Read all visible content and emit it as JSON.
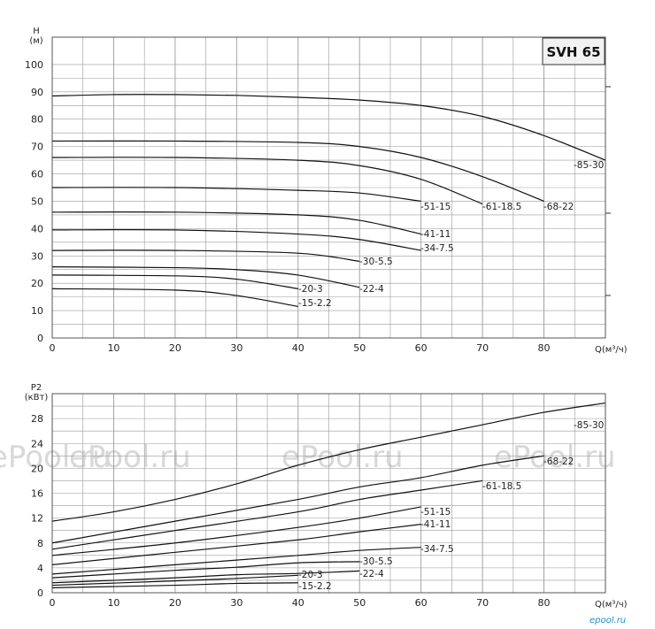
{
  "badge": "SVH 65",
  "watermark": "ePool.ru",
  "logo": "epool.ru",
  "colors": {
    "grid": "#9a9a9a",
    "curve": "#111111",
    "watermark": "#d8d8d8",
    "logo": "#1a8fd0"
  },
  "chart_data": [
    {
      "type": "line",
      "title": "SVH 65",
      "ylabel": "H",
      "yunit": "(м)",
      "xlabel": "Q(м³/ч)",
      "xlim": [
        0,
        90
      ],
      "ylim": [
        0,
        110
      ],
      "xticks": [
        0,
        10,
        20,
        30,
        40,
        50,
        60,
        70,
        80
      ],
      "yticks": [
        0,
        10,
        20,
        30,
        40,
        50,
        60,
        70,
        80,
        90,
        100
      ],
      "grid": true,
      "series": [
        {
          "name": "-85-30",
          "points": [
            [
              0,
              88.5
            ],
            [
              10,
              89
            ],
            [
              20,
              89
            ],
            [
              30,
              88.7
            ],
            [
              40,
              88
            ],
            [
              50,
              87
            ],
            [
              60,
              85
            ],
            [
              70,
              81
            ],
            [
              80,
              74
            ],
            [
              90,
              65
            ]
          ]
        },
        {
          "name": "-68-22",
          "points": [
            [
              0,
              72
            ],
            [
              20,
              72
            ],
            [
              40,
              71.5
            ],
            [
              50,
              70
            ],
            [
              60,
              66
            ],
            [
              70,
              59
            ],
            [
              80,
              50
            ]
          ]
        },
        {
          "name": "-61-18.5",
          "points": [
            [
              0,
              66
            ],
            [
              20,
              66
            ],
            [
              40,
              65
            ],
            [
              50,
              63
            ],
            [
              60,
              58
            ],
            [
              70,
              49
            ]
          ]
        },
        {
          "name": "-51-15",
          "points": [
            [
              0,
              55
            ],
            [
              20,
              55
            ],
            [
              40,
              54
            ],
            [
              50,
              53
            ],
            [
              60,
              50
            ]
          ]
        },
        {
          "name": "-41-11",
          "points": [
            [
              0,
              46
            ],
            [
              20,
              46
            ],
            [
              40,
              45
            ],
            [
              50,
              43
            ],
            [
              60,
              38
            ]
          ]
        },
        {
          "name": "-34-7.5",
          "points": [
            [
              0,
              39.5
            ],
            [
              20,
              39.5
            ],
            [
              40,
              38
            ],
            [
              50,
              36
            ],
            [
              60,
              32
            ]
          ]
        },
        {
          "name": "-30-5.5",
          "points": [
            [
              0,
              32
            ],
            [
              20,
              32
            ],
            [
              40,
              31
            ],
            [
              50,
              28
            ]
          ]
        },
        {
          "name": "-22-4",
          "points": [
            [
              0,
              26
            ],
            [
              20,
              25.7
            ],
            [
              30,
              25
            ],
            [
              40,
              23
            ],
            [
              50,
              18.5
            ]
          ]
        },
        {
          "name": "-20-3",
          "points": [
            [
              0,
              23
            ],
            [
              20,
              22.7
            ],
            [
              30,
              21.5
            ],
            [
              40,
              18
            ]
          ]
        },
        {
          "name": "-15-2.2",
          "points": [
            [
              0,
              18
            ],
            [
              20,
              17.5
            ],
            [
              30,
              15.5
            ],
            [
              40,
              11.5
            ]
          ]
        }
      ]
    },
    {
      "type": "line",
      "ylabel": "P2",
      "yunit": "(кВт)",
      "xlabel": "Q(м³/ч)",
      "xlim": [
        0,
        90
      ],
      "ylim": [
        0,
        32
      ],
      "xticks": [
        0,
        10,
        20,
        30,
        40,
        50,
        60,
        70,
        80
      ],
      "yticks": [
        0,
        4,
        8,
        12,
        16,
        20,
        24,
        28
      ],
      "grid": true,
      "series": [
        {
          "name": "-85-30",
          "points": [
            [
              0,
              11.5
            ],
            [
              10,
              13
            ],
            [
              20,
              15
            ],
            [
              30,
              17.5
            ],
            [
              40,
              20.5
            ],
            [
              50,
              23
            ],
            [
              60,
              25
            ],
            [
              70,
              27
            ],
            [
              80,
              29
            ],
            [
              90,
              30.5
            ]
          ]
        },
        {
          "name": "-68-22",
          "points": [
            [
              0,
              8
            ],
            [
              20,
              11.5
            ],
            [
              40,
              15
            ],
            [
              50,
              17
            ],
            [
              60,
              18.5
            ],
            [
              70,
              20.5
            ],
            [
              80,
              22
            ]
          ]
        },
        {
          "name": "-61-18.5",
          "points": [
            [
              0,
              7
            ],
            [
              20,
              10
            ],
            [
              40,
              13
            ],
            [
              50,
              15
            ],
            [
              60,
              16.5
            ],
            [
              70,
              18
            ]
          ]
        },
        {
          "name": "-51-15",
          "points": [
            [
              0,
              6
            ],
            [
              20,
              8
            ],
            [
              40,
              10.5
            ],
            [
              50,
              12
            ],
            [
              60,
              13.8
            ]
          ]
        },
        {
          "name": "-41-11",
          "points": [
            [
              0,
              4.5
            ],
            [
              20,
              6.5
            ],
            [
              40,
              8.5
            ],
            [
              50,
              9.8
            ],
            [
              60,
              11
            ]
          ]
        },
        {
          "name": "-34-7.5",
          "points": [
            [
              0,
              3
            ],
            [
              20,
              4.5
            ],
            [
              40,
              6
            ],
            [
              50,
              6.8
            ],
            [
              60,
              7.3
            ]
          ]
        },
        {
          "name": "-30-5.5",
          "points": [
            [
              0,
              2.4
            ],
            [
              20,
              3.6
            ],
            [
              30,
              4.1
            ],
            [
              40,
              4.8
            ],
            [
              50,
              5
            ]
          ]
        },
        {
          "name": "-22-4",
          "points": [
            [
              0,
              1.6
            ],
            [
              20,
              2.4
            ],
            [
              30,
              2.9
            ],
            [
              40,
              3.1
            ],
            [
              50,
              3.5
            ]
          ]
        },
        {
          "name": "-20-3",
          "points": [
            [
              0,
              1.2
            ],
            [
              20,
              1.9
            ],
            [
              30,
              2.3
            ],
            [
              40,
              2.8
            ]
          ]
        },
        {
          "name": "-15-2.2",
          "points": [
            [
              0,
              0.8
            ],
            [
              20,
              1.2
            ],
            [
              30,
              1.5
            ],
            [
              40,
              1.6
            ]
          ]
        }
      ]
    }
  ]
}
